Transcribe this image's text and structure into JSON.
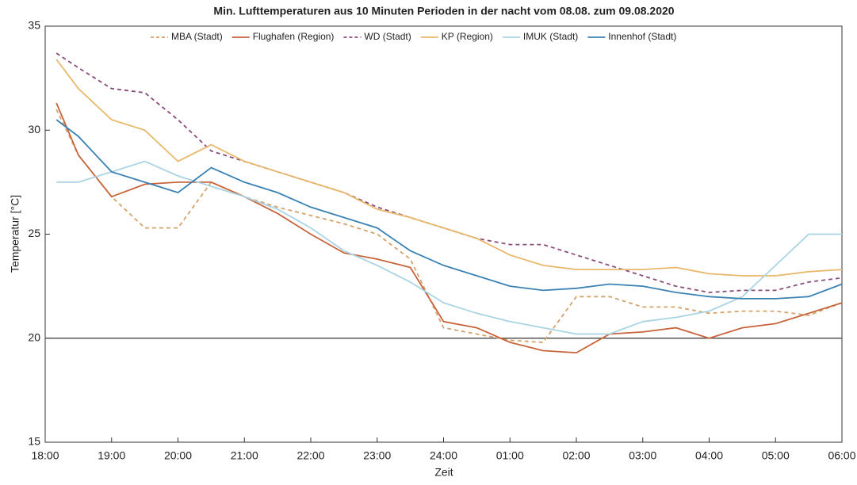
{
  "chart_data": {
    "type": "line",
    "title": "Min. Lufttemperaturen aus 10 Minuten Perioden in der nacht vom 08.08. zum 09.08.2020",
    "xlabel": "Zeit",
    "ylabel": "Temperatur [°C]",
    "x": [
      18.17,
      18.5,
      19,
      19.5,
      20,
      20.5,
      21,
      21.5,
      22,
      22.5,
      23,
      23.5,
      24,
      24.5,
      25,
      25.5,
      26,
      26.5,
      27,
      27.5,
      28,
      28.5,
      29,
      29.5,
      30
    ],
    "series": [
      {
        "name": "MBA (Stadt)",
        "color": "#d4a26a",
        "dash": true,
        "values": [
          31.0,
          28.8,
          26.8,
          25.3,
          25.3,
          27.5,
          26.8,
          26.3,
          25.9,
          25.5,
          25.0,
          23.8,
          20.5,
          20.2,
          19.9,
          19.8,
          22.0,
          22.0,
          21.5,
          21.5,
          21.2,
          21.3,
          21.3,
          21.1,
          21.7
        ]
      },
      {
        "name": "Flughafen (Region)",
        "color": "#c8643c",
        "dash": false,
        "values": [
          31.3,
          28.8,
          26.8,
          27.4,
          27.5,
          27.5,
          26.8,
          26.0,
          25.0,
          24.1,
          23.8,
          23.4,
          20.8,
          20.5,
          19.8,
          19.4,
          19.3,
          20.2,
          20.3,
          20.5,
          20.0,
          20.5,
          20.7,
          21.2,
          21.7
        ]
      },
      {
        "name": "WD (Stadt)",
        "color": "#8a4c7c",
        "dash": true,
        "values": [
          33.7,
          33.0,
          32.0,
          31.8,
          30.5,
          29.0,
          28.5,
          28.0,
          27.5,
          27.0,
          26.3,
          25.8,
          25.3,
          24.8,
          24.5,
          24.5,
          24.0,
          23.5,
          23.0,
          22.5,
          22.2,
          22.3,
          22.3,
          22.7,
          22.9
        ]
      },
      {
        "name": "KP (Region)",
        "color": "#e8b86a",
        "dash": false,
        "values": [
          33.4,
          32.0,
          30.5,
          30.0,
          28.5,
          29.3,
          28.5,
          28.0,
          27.5,
          27.0,
          26.2,
          25.8,
          25.3,
          24.8,
          24.0,
          23.5,
          23.3,
          23.3,
          23.3,
          23.4,
          23.1,
          23.0,
          23.0,
          23.2,
          23.3
        ]
      },
      {
        "name": "IMUK (Stadt)",
        "color": "#a9d4e4",
        "dash": false,
        "values": [
          27.5,
          27.5,
          28.0,
          28.5,
          27.8,
          27.3,
          26.8,
          26.2,
          25.3,
          24.2,
          23.5,
          22.7,
          21.7,
          21.2,
          20.8,
          20.5,
          20.2,
          20.2,
          20.8,
          21.0,
          21.3,
          22.0,
          23.5,
          25.0,
          25.0
        ]
      },
      {
        "name": "Innenhof (Stadt)",
        "color": "#3a82b4",
        "dash": false,
        "values": [
          30.5,
          29.7,
          28.0,
          27.5,
          27.0,
          28.2,
          27.5,
          27.0,
          26.3,
          25.8,
          25.3,
          24.2,
          23.5,
          23.0,
          22.5,
          22.3,
          22.4,
          22.6,
          22.5,
          22.2,
          22.0,
          21.9,
          21.9,
          22.0,
          22.6
        ]
      }
    ],
    "hline": 20,
    "xlim": [
      18,
      30
    ],
    "xticks": [
      {
        "value": 18,
        "label": "18:00"
      },
      {
        "value": 19,
        "label": "19:00"
      },
      {
        "value": 20,
        "label": "20:00"
      },
      {
        "value": 21,
        "label": "21:00"
      },
      {
        "value": 22,
        "label": "22:00"
      },
      {
        "value": 23,
        "label": "23:00"
      },
      {
        "value": 24,
        "label": "24:00"
      },
      {
        "value": 25,
        "label": "01:00"
      },
      {
        "value": 26,
        "label": "02:00"
      },
      {
        "value": 27,
        "label": "03:00"
      },
      {
        "value": 28,
        "label": "04:00"
      },
      {
        "value": 29,
        "label": "05:00"
      },
      {
        "value": 30,
        "label": "06:00"
      }
    ],
    "ylim": [
      15,
      35
    ],
    "yticks": [
      15,
      20,
      25,
      30,
      35
    ],
    "grid": false,
    "legend": "top"
  }
}
